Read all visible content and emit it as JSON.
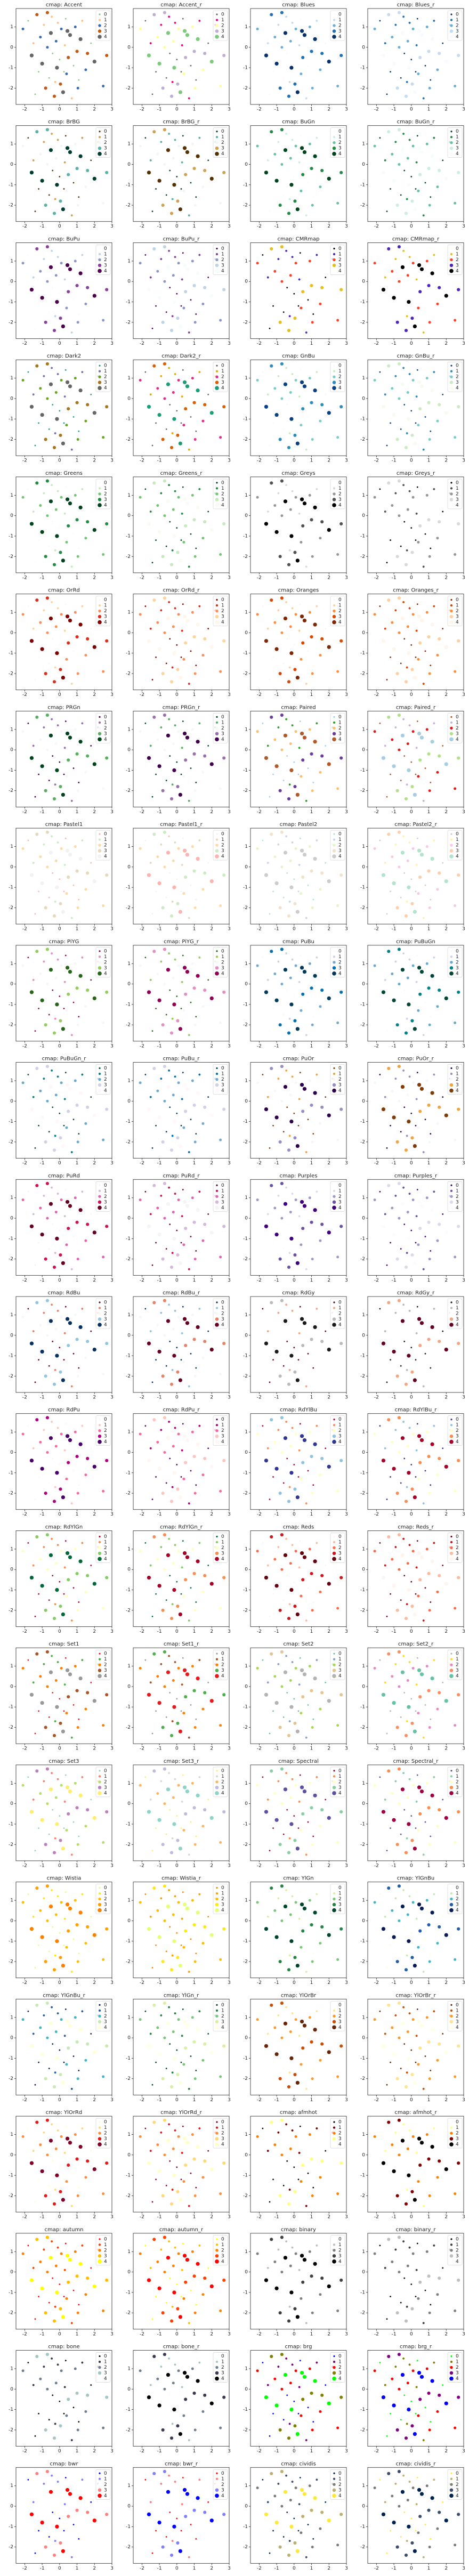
{
  "axes": {
    "xlim": [
      -2.5,
      3.0
    ],
    "ylim": [
      -2.8,
      1.9
    ],
    "xticks": [
      -2,
      -1,
      0,
      1,
      2,
      3
    ],
    "yticks": [
      -2,
      -1,
      0,
      1
    ]
  },
  "legend": [
    "0",
    "1",
    "2",
    "3",
    "4"
  ],
  "points": {
    "x": [
      -2.1,
      -1.8,
      -1.6,
      -1.5,
      -1.3,
      -1.2,
      -1.1,
      -1.0,
      -0.9,
      -0.8,
      -0.7,
      -0.6,
      -0.5,
      -0.45,
      -0.4,
      -0.3,
      -0.2,
      -0.15,
      -0.1,
      0.0,
      0.05,
      0.1,
      0.2,
      0.3,
      0.35,
      0.4,
      0.5,
      0.6,
      0.7,
      0.8,
      0.9,
      1.0,
      1.1,
      1.2,
      1.3,
      1.5,
      1.6,
      1.8,
      2.0,
      2.2,
      2.5,
      2.7,
      -1.4,
      -0.25,
      0.45,
      1.05,
      -0.7,
      0.25
    ],
    "y": [
      0.9,
      1.3,
      -0.4,
      0.2,
      1.6,
      -1.2,
      0.5,
      -0.8,
      1.1,
      -2.0,
      0.0,
      -1.5,
      0.7,
      1.5,
      -0.3,
      -2.4,
      0.3,
      -1.0,
      1.2,
      -0.6,
      -1.8,
      0.9,
      -2.2,
      0.1,
      1.4,
      -1.3,
      -0.5,
      0.6,
      -2.5,
      -0.9,
      1.0,
      -0.2,
      -1.6,
      0.4,
      1.3,
      -1.1,
      -0.3,
      0.2,
      -0.7,
      1.1,
      -1.9,
      -0.4,
      -2.3,
      -1.7,
      0.8,
      -2.0,
      1.7,
      -1.2
    ],
    "class": [
      2,
      0,
      4,
      1,
      3,
      0,
      2,
      4,
      1,
      3,
      2,
      0,
      4,
      1,
      0,
      3,
      2,
      4,
      1,
      0,
      3,
      2,
      4,
      1,
      0,
      2,
      3,
      4,
      1,
      0,
      2,
      3,
      0,
      4,
      1,
      2,
      3,
      0,
      4,
      1,
      2,
      3,
      0,
      1,
      4,
      2,
      3,
      0
    ]
  },
  "chart_data": [
    {
      "type": "scatter",
      "title": "cmap: Accent",
      "colors": [
        "#7fc97f",
        "#fdc086",
        "#386cb0",
        "#bf5b17",
        "#666666"
      ]
    },
    {
      "type": "scatter",
      "title": "cmap: Accent_r",
      "colors": [
        "#666666",
        "#f0027f",
        "#ffff99",
        "#beaed4",
        "#7fc97f"
      ]
    },
    {
      "type": "scatter",
      "title": "cmap: Blues",
      "colors": [
        "#f7fbff",
        "#c6dbef",
        "#6baed6",
        "#2171b5",
        "#08306b"
      ]
    },
    {
      "type": "scatter",
      "title": "cmap: Blues_r",
      "colors": [
        "#08306b",
        "#2171b5",
        "#6baed6",
        "#c6dbef",
        "#f7fbff"
      ]
    },
    {
      "type": "scatter",
      "title": "cmap: BrBG",
      "colors": [
        "#543005",
        "#cfa256",
        "#f5f5f5",
        "#5ab2a8",
        "#003c30"
      ]
    },
    {
      "type": "scatter",
      "title": "cmap: BrBG_r",
      "colors": [
        "#003c30",
        "#5ab2a8",
        "#f5f5f5",
        "#cfa256",
        "#543005"
      ]
    },
    {
      "type": "scatter",
      "title": "cmap: BuGn",
      "colors": [
        "#f7fcfd",
        "#ccece6",
        "#66c2a4",
        "#238b45",
        "#00441b"
      ]
    },
    {
      "type": "scatter",
      "title": "cmap: BuGn_r",
      "colors": [
        "#00441b",
        "#238b45",
        "#66c2a4",
        "#ccece6",
        "#f7fcfd"
      ]
    },
    {
      "type": "scatter",
      "title": "cmap: BuPu",
      "colors": [
        "#f7fcfd",
        "#bfd3e6",
        "#8c96c6",
        "#88419d",
        "#4d004b"
      ]
    },
    {
      "type": "scatter",
      "title": "cmap: BuPu_r",
      "colors": [
        "#4d004b",
        "#88419d",
        "#8c96c6",
        "#bfd3e6",
        "#f7fcfd"
      ]
    },
    {
      "type": "scatter",
      "title": "cmap: CMRmap",
      "colors": [
        "#000000",
        "#4c26bf",
        "#ff4026",
        "#e6bf1a",
        "#ffffff"
      ]
    },
    {
      "type": "scatter",
      "title": "cmap: CMRmap_r",
      "colors": [
        "#ffffff",
        "#e6bf1a",
        "#ff4026",
        "#4c26bf",
        "#000000"
      ]
    },
    {
      "type": "scatter",
      "title": "cmap: Dark2",
      "colors": [
        "#1b9e77",
        "#7570b3",
        "#66a61e",
        "#a6761d",
        "#666666"
      ]
    },
    {
      "type": "scatter",
      "title": "cmap: Dark2_r",
      "colors": [
        "#666666",
        "#e6ab02",
        "#e7298a",
        "#d95f02",
        "#1b9e77"
      ]
    },
    {
      "type": "scatter",
      "title": "cmap: GnBu",
      "colors": [
        "#f7fcf0",
        "#ccebc5",
        "#7bccc4",
        "#2b8cbe",
        "#084081"
      ]
    },
    {
      "type": "scatter",
      "title": "cmap: GnBu_r",
      "colors": [
        "#084081",
        "#2b8cbe",
        "#7bccc4",
        "#ccebc5",
        "#f7fcf0"
      ]
    },
    {
      "type": "scatter",
      "title": "cmap: Greens",
      "colors": [
        "#f7fcf5",
        "#c7e9c0",
        "#74c476",
        "#238b45",
        "#00441b"
      ]
    },
    {
      "type": "scatter",
      "title": "cmap: Greens_r",
      "colors": [
        "#00441b",
        "#238b45",
        "#74c476",
        "#c7e9c0",
        "#f7fcf5"
      ]
    },
    {
      "type": "scatter",
      "title": "cmap: Greys",
      "colors": [
        "#ffffff",
        "#d9d9d9",
        "#969696",
        "#525252",
        "#000000"
      ]
    },
    {
      "type": "scatter",
      "title": "cmap: Greys_r",
      "colors": [
        "#000000",
        "#525252",
        "#969696",
        "#d9d9d9",
        "#ffffff"
      ]
    },
    {
      "type": "scatter",
      "title": "cmap: OrRd",
      "colors": [
        "#fff7ec",
        "#fdd49e",
        "#fc8d59",
        "#d7301f",
        "#7f0000"
      ]
    },
    {
      "type": "scatter",
      "title": "cmap: OrRd_r",
      "colors": [
        "#7f0000",
        "#d7301f",
        "#fc8d59",
        "#fdd49e",
        "#fff7ec"
      ]
    },
    {
      "type": "scatter",
      "title": "cmap: Oranges",
      "colors": [
        "#fff5eb",
        "#fdd0a2",
        "#fd8d3c",
        "#d94801",
        "#7f2704"
      ]
    },
    {
      "type": "scatter",
      "title": "cmap: Oranges_r",
      "colors": [
        "#7f2704",
        "#d94801",
        "#fd8d3c",
        "#fdd0a2",
        "#fff5eb"
      ]
    },
    {
      "type": "scatter",
      "title": "cmap: PRGn",
      "colors": [
        "#40004b",
        "#9970ab",
        "#f7f7f7",
        "#5aae61",
        "#00441b"
      ]
    },
    {
      "type": "scatter",
      "title": "cmap: PRGn_r",
      "colors": [
        "#00441b",
        "#5aae61",
        "#f7f7f7",
        "#9970ab",
        "#40004b"
      ]
    },
    {
      "type": "scatter",
      "title": "cmap: Paired",
      "colors": [
        "#a6cee3",
        "#33a02c",
        "#fdbf6f",
        "#6a3d9a",
        "#b15928"
      ]
    },
    {
      "type": "scatter",
      "title": "cmap: Paired_r",
      "colors": [
        "#b15928",
        "#cab2d6",
        "#e31a1c",
        "#b2df8a",
        "#a6cee3"
      ]
    },
    {
      "type": "scatter",
      "title": "cmap: Pastel1",
      "colors": [
        "#fbb4ae",
        "#ccebc5",
        "#fed9a6",
        "#e5d8bd",
        "#f2f2f2"
      ]
    },
    {
      "type": "scatter",
      "title": "cmap: Pastel1_r",
      "colors": [
        "#f2f2f2",
        "#e5d8bd",
        "#fed9a6",
        "#ccebc5",
        "#fbb4ae"
      ]
    },
    {
      "type": "scatter",
      "title": "cmap: Pastel2",
      "colors": [
        "#b3e2cd",
        "#cbd5e8",
        "#e6f5c9",
        "#f1e2cc",
        "#cccccc"
      ]
    },
    {
      "type": "scatter",
      "title": "cmap: Pastel2_r",
      "colors": [
        "#cccccc",
        "#fff2ae",
        "#f4cae4",
        "#fdcdac",
        "#b3e2cd"
      ]
    },
    {
      "type": "scatter",
      "title": "cmap: PiYG",
      "colors": [
        "#8e0152",
        "#e38fbf",
        "#f7f7f7",
        "#96cb62",
        "#276419"
      ]
    },
    {
      "type": "scatter",
      "title": "cmap: PiYG_r",
      "colors": [
        "#276419",
        "#96cb62",
        "#f7f7f7",
        "#e38fbf",
        "#8e0152"
      ]
    },
    {
      "type": "scatter",
      "title": "cmap: PuBu",
      "colors": [
        "#fff7fb",
        "#d0d1e6",
        "#74a9cf",
        "#0570b0",
        "#023858"
      ]
    },
    {
      "type": "scatter",
      "title": "cmap: PuBuGn",
      "colors": [
        "#fff7fb",
        "#d0d1e6",
        "#67a9cf",
        "#02818a",
        "#014636"
      ]
    },
    {
      "type": "scatter",
      "title": "cmap: PuBuGn_r",
      "colors": [
        "#014636",
        "#02818a",
        "#67a9cf",
        "#d0d1e6",
        "#fff7fb"
      ]
    },
    {
      "type": "scatter",
      "title": "cmap: PuBu_r",
      "colors": [
        "#023858",
        "#0570b0",
        "#74a9cf",
        "#d0d1e6",
        "#fff7fb"
      ]
    },
    {
      "type": "scatter",
      "title": "cmap: PuOr",
      "colors": [
        "#7f3b08",
        "#f1a340",
        "#f7f7f7",
        "#998ec3",
        "#2d004b"
      ]
    },
    {
      "type": "scatter",
      "title": "cmap: PuOr_r",
      "colors": [
        "#2d004b",
        "#998ec3",
        "#f7f7f7",
        "#f1a340",
        "#7f3b08"
      ]
    },
    {
      "type": "scatter",
      "title": "cmap: PuRd",
      "colors": [
        "#f7f4f9",
        "#d4b9da",
        "#df65b0",
        "#ce1256",
        "#67001f"
      ]
    },
    {
      "type": "scatter",
      "title": "cmap: PuRd_r",
      "colors": [
        "#67001f",
        "#ce1256",
        "#df65b0",
        "#d4b9da",
        "#f7f4f9"
      ]
    },
    {
      "type": "scatter",
      "title": "cmap: Purples",
      "colors": [
        "#fcfbfd",
        "#dadaeb",
        "#9e9ac8",
        "#6a51a3",
        "#3f007d"
      ]
    },
    {
      "type": "scatter",
      "title": "cmap: Purples_r",
      "colors": [
        "#3f007d",
        "#6a51a3",
        "#9e9ac8",
        "#dadaeb",
        "#fcfbfd"
      ]
    },
    {
      "type": "scatter",
      "title": "cmap: RdBu",
      "colors": [
        "#67001f",
        "#e58267",
        "#f7f7f7",
        "#92c5de",
        "#053061"
      ]
    },
    {
      "type": "scatter",
      "title": "cmap: RdBu_r",
      "colors": [
        "#053061",
        "#92c5de",
        "#f7f7f7",
        "#e58267",
        "#67001f"
      ]
    },
    {
      "type": "scatter",
      "title": "cmap: RdGy",
      "colors": [
        "#67001f",
        "#f4a582",
        "#ffffff",
        "#bababa",
        "#1a1a1a"
      ]
    },
    {
      "type": "scatter",
      "title": "cmap: RdGy_r",
      "colors": [
        "#1a1a1a",
        "#bababa",
        "#ffffff",
        "#f4a582",
        "#67001f"
      ]
    },
    {
      "type": "scatter",
      "title": "cmap: RdPu",
      "colors": [
        "#fff7f3",
        "#fcc5c0",
        "#f768a1",
        "#ae017e",
        "#49006a"
      ]
    },
    {
      "type": "scatter",
      "title": "cmap: RdPu_r",
      "colors": [
        "#49006a",
        "#ae017e",
        "#f768a1",
        "#fcc5c0",
        "#fff7f3"
      ]
    },
    {
      "type": "scatter",
      "title": "cmap: RdYlBu",
      "colors": [
        "#a50026",
        "#f98e52",
        "#ffffbf",
        "#90c3dd",
        "#313695"
      ]
    },
    {
      "type": "scatter",
      "title": "cmap: RdYlBu_r",
      "colors": [
        "#313695",
        "#90c3dd",
        "#ffffbf",
        "#f98e52",
        "#a50026"
      ]
    },
    {
      "type": "scatter",
      "title": "cmap: RdYlGn",
      "colors": [
        "#a50026",
        "#f98e52",
        "#ffffbf",
        "#86cb66",
        "#006837"
      ]
    },
    {
      "type": "scatter",
      "title": "cmap: RdYlGn_r",
      "colors": [
        "#006837",
        "#86cb66",
        "#ffffbf",
        "#f98e52",
        "#a50026"
      ]
    },
    {
      "type": "scatter",
      "title": "cmap: Reds",
      "colors": [
        "#fff5f0",
        "#fcbba1",
        "#fb6a4a",
        "#cb181d",
        "#67000d"
      ]
    },
    {
      "type": "scatter",
      "title": "cmap: Reds_r",
      "colors": [
        "#67000d",
        "#cb181d",
        "#fb6a4a",
        "#fcbba1",
        "#fff5f0"
      ]
    },
    {
      "type": "scatter",
      "title": "cmap: Set1",
      "colors": [
        "#e41a1c",
        "#4daf4a",
        "#ff7f00",
        "#a65628",
        "#999999"
      ]
    },
    {
      "type": "scatter",
      "title": "cmap: Set1_r",
      "colors": [
        "#999999",
        "#a65628",
        "#ff7f00",
        "#4daf4a",
        "#e41a1c"
      ]
    },
    {
      "type": "scatter",
      "title": "cmap: Set2",
      "colors": [
        "#66c2a5",
        "#8da0cb",
        "#a6d854",
        "#e5c494",
        "#b3b3b3"
      ]
    },
    {
      "type": "scatter",
      "title": "cmap: Set2_r",
      "colors": [
        "#b3b3b3",
        "#ffd92f",
        "#e78ac3",
        "#fc8d62",
        "#66c2a5"
      ]
    },
    {
      "type": "scatter",
      "title": "cmap: Set3",
      "colors": [
        "#8dd3c7",
        "#fb8072",
        "#b3de69",
        "#bc80bd",
        "#ffed6f"
      ]
    },
    {
      "type": "scatter",
      "title": "cmap: Set3_r",
      "colors": [
        "#ffed6f",
        "#d9d9d9",
        "#fdb462",
        "#bebada",
        "#8dd3c7"
      ]
    },
    {
      "type": "scatter",
      "title": "cmap: Spectral",
      "colors": [
        "#9e0142",
        "#f98e52",
        "#ffffbf",
        "#88d0a4",
        "#5e4fa2"
      ]
    },
    {
      "type": "scatter",
      "title": "cmap: Spectral_r",
      "colors": [
        "#5e4fa2",
        "#88d0a4",
        "#ffffbf",
        "#f98e52",
        "#9e0142"
      ]
    },
    {
      "type": "scatter",
      "title": "cmap: Wistia",
      "colors": [
        "#e4ff7a",
        "#ffe81a",
        "#ffbd00",
        "#ffa000",
        "#fc7f00"
      ]
    },
    {
      "type": "scatter",
      "title": "cmap: Wistia_r",
      "colors": [
        "#fc7f00",
        "#ffa000",
        "#ffbd00",
        "#ffe81a",
        "#e4ff7a"
      ]
    },
    {
      "type": "scatter",
      "title": "cmap: YlGn",
      "colors": [
        "#ffffe5",
        "#d9f0a3",
        "#78c679",
        "#238443",
        "#004529"
      ]
    },
    {
      "type": "scatter",
      "title": "cmap: YlGnBu",
      "colors": [
        "#ffffd9",
        "#c7e9b4",
        "#41b6c4",
        "#225ea8",
        "#081d58"
      ]
    },
    {
      "type": "scatter",
      "title": "cmap: YlGnBu_r",
      "colors": [
        "#081d58",
        "#225ea8",
        "#41b6c4",
        "#c7e9b4",
        "#ffffd9"
      ]
    },
    {
      "type": "scatter",
      "title": "cmap: YlGn_r",
      "colors": [
        "#004529",
        "#238443",
        "#78c679",
        "#d9f0a3",
        "#ffffe5"
      ]
    },
    {
      "type": "scatter",
      "title": "cmap: YlOrBr",
      "colors": [
        "#ffffe5",
        "#fee391",
        "#fe9929",
        "#cc4c02",
        "#662506"
      ]
    },
    {
      "type": "scatter",
      "title": "cmap: YlOrBr_r",
      "colors": [
        "#662506",
        "#cc4c02",
        "#fe9929",
        "#fee391",
        "#ffffe5"
      ]
    },
    {
      "type": "scatter",
      "title": "cmap: YlOrRd",
      "colors": [
        "#ffffcc",
        "#fed976",
        "#fd8d3c",
        "#e31a1c",
        "#800026"
      ]
    },
    {
      "type": "scatter",
      "title": "cmap: YlOrRd_r",
      "colors": [
        "#800026",
        "#e31a1c",
        "#fd8d3c",
        "#fed976",
        "#ffffcc"
      ]
    },
    {
      "type": "scatter",
      "title": "cmap: afmhot",
      "colors": [
        "#000000",
        "#800000",
        "#ff8000",
        "#ffff80",
        "#ffffff"
      ]
    },
    {
      "type": "scatter",
      "title": "cmap: afmhot_r",
      "colors": [
        "#ffffff",
        "#ffff80",
        "#ff8000",
        "#800000",
        "#000000"
      ]
    },
    {
      "type": "scatter",
      "title": "cmap: autumn",
      "colors": [
        "#ff0000",
        "#ff4000",
        "#ff8000",
        "#ffbf00",
        "#ffff00"
      ]
    },
    {
      "type": "scatter",
      "title": "cmap: autumn_r",
      "colors": [
        "#ffff00",
        "#ffbf00",
        "#ff8000",
        "#ff4000",
        "#ff0000"
      ]
    },
    {
      "type": "scatter",
      "title": "cmap: binary",
      "colors": [
        "#ffffff",
        "#bfbfbf",
        "#808080",
        "#404040",
        "#000000"
      ]
    },
    {
      "type": "scatter",
      "title": "cmap: binary_r",
      "colors": [
        "#000000",
        "#404040",
        "#808080",
        "#bfbfbf",
        "#ffffff"
      ]
    },
    {
      "type": "scatter",
      "title": "cmap: bone",
      "colors": [
        "#000000",
        "#39394f",
        "#707f8f",
        "#a6c6c6",
        "#ffffff"
      ]
    },
    {
      "type": "scatter",
      "title": "cmap: bone_r",
      "colors": [
        "#ffffff",
        "#a6c6c6",
        "#707f8f",
        "#39394f",
        "#000000"
      ]
    },
    {
      "type": "scatter",
      "title": "cmap: brg",
      "colors": [
        "#0000ff",
        "#800080",
        "#ff0000",
        "#808000",
        "#00ff00"
      ]
    },
    {
      "type": "scatter",
      "title": "cmap: brg_r",
      "colors": [
        "#00ff00",
        "#808000",
        "#ff0000",
        "#800080",
        "#0000ff"
      ]
    },
    {
      "type": "scatter",
      "title": "cmap: bwr",
      "colors": [
        "#0000ff",
        "#8080ff",
        "#ffffff",
        "#ff8080",
        "#ff0000"
      ]
    },
    {
      "type": "scatter",
      "title": "cmap: bwr_r",
      "colors": [
        "#ff0000",
        "#ff8080",
        "#ffffff",
        "#8080ff",
        "#0000ff"
      ]
    },
    {
      "type": "scatter",
      "title": "cmap: cividis",
      "colors": [
        "#00224e",
        "#3c4d6e",
        "#7c7b78",
        "#bcaf6f",
        "#fee838"
      ]
    },
    {
      "type": "scatter",
      "title": "cmap: cividis_r",
      "colors": [
        "#fee838",
        "#bcaf6f",
        "#7c7b78",
        "#3c4d6e",
        "#00224e"
      ]
    }
  ]
}
